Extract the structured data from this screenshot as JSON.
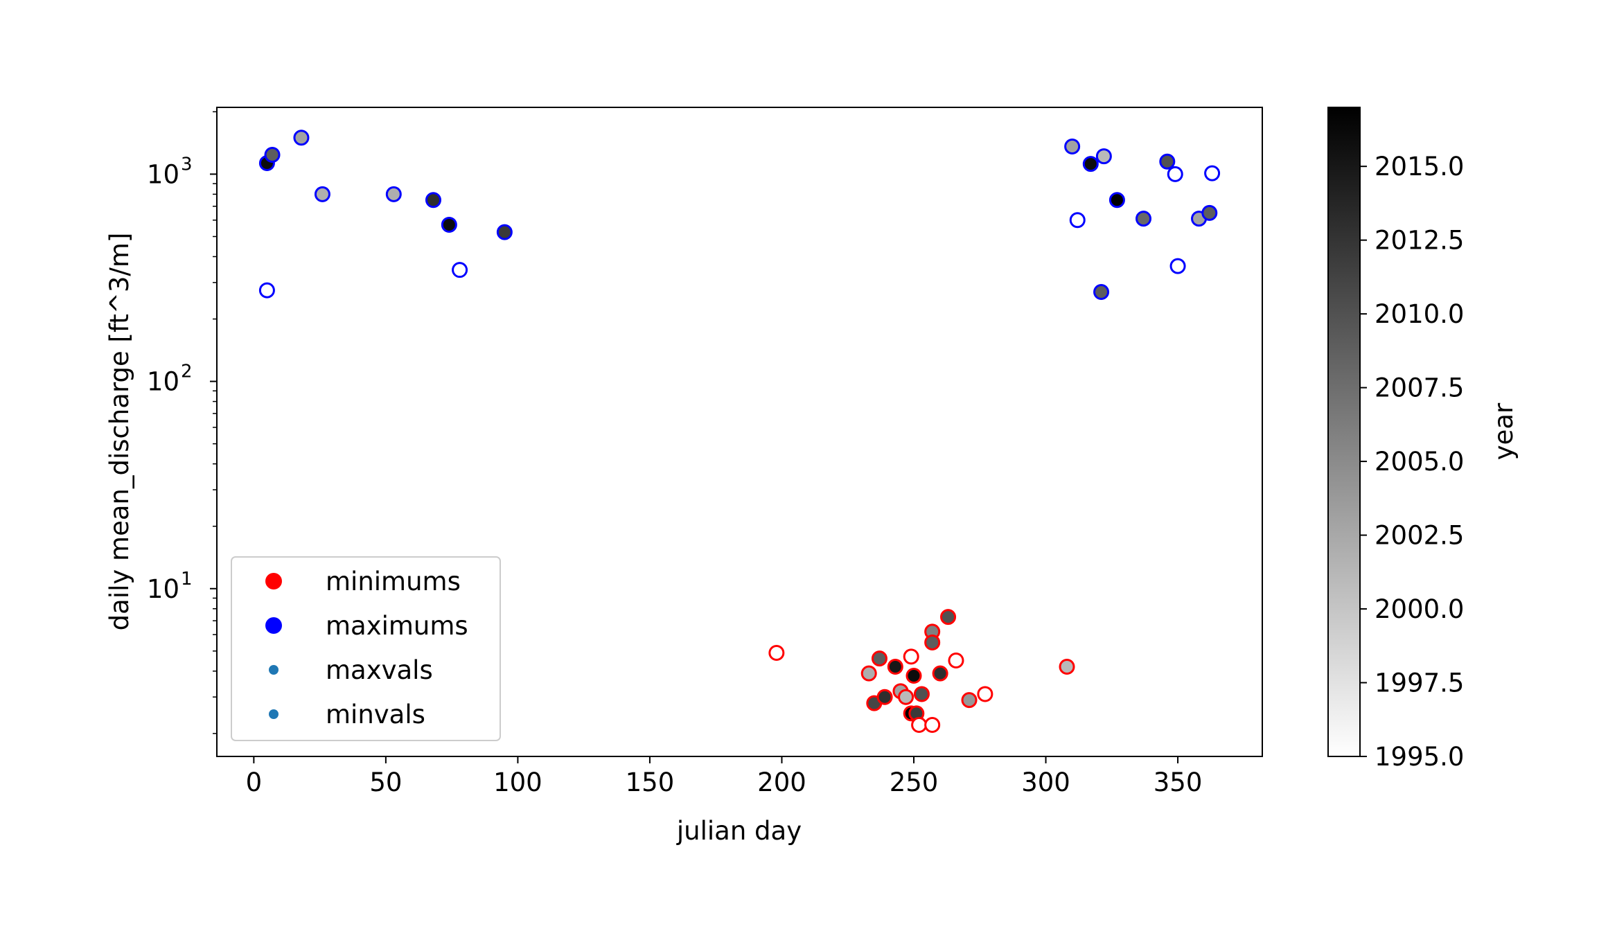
{
  "chart_data": {
    "type": "scatter",
    "title": "",
    "xlabel": "julian day",
    "ylabel": "daily mean_discharge [ft^3/m]",
    "xlim": [
      -14,
      382
    ],
    "ylim": [
      1.55,
      2100
    ],
    "yscale": "log",
    "xticks": [
      0,
      50,
      100,
      150,
      200,
      250,
      300,
      350
    ],
    "yticks": [
      {
        "value": 10,
        "base": "10",
        "exp": "1"
      },
      {
        "value": 100,
        "base": "10",
        "exp": "2"
      },
      {
        "value": 1000,
        "base": "10",
        "exp": "3"
      }
    ],
    "grid": false,
    "legend": {
      "placement": "lower-left",
      "entries": [
        {
          "label": "minimums",
          "color": "#ff0000",
          "marker": "large"
        },
        {
          "label": "maximums",
          "color": "#0000ff",
          "marker": "large"
        },
        {
          "label": "maxvals",
          "color": "#1f77b4",
          "marker": "small"
        },
        {
          "label": "minvals",
          "color": "#1f77b4",
          "marker": "small"
        }
      ]
    },
    "colorbar": {
      "label": "year",
      "range": [
        1995.0,
        2017.0
      ],
      "colormap": "gray_r",
      "ticks": [
        "1995.0",
        "1997.5",
        "2000.0",
        "2002.5",
        "2005.0",
        "2007.5",
        "2010.0",
        "2012.5",
        "2015.0"
      ]
    },
    "series": [
      {
        "name": "maximums",
        "edgecolor": "#0000ff",
        "points": [
          {
            "x": 5,
            "y": 1130,
            "year": 2016
          },
          {
            "x": 7,
            "y": 1240,
            "year": 2009
          },
          {
            "x": 18,
            "y": 1500,
            "year": 2003
          },
          {
            "x": 5,
            "y": 275,
            "year": 1995
          },
          {
            "x": 26,
            "y": 800,
            "year": 2002
          },
          {
            "x": 53,
            "y": 800,
            "year": 2002
          },
          {
            "x": 68,
            "y": 750,
            "year": 2013
          },
          {
            "x": 74,
            "y": 570,
            "year": 2016
          },
          {
            "x": 78,
            "y": 345,
            "year": 1995
          },
          {
            "x": 95,
            "y": 525,
            "year": 2012
          },
          {
            "x": 310,
            "y": 1360,
            "year": 2003
          },
          {
            "x": 312,
            "y": 600,
            "year": 1995
          },
          {
            "x": 317,
            "y": 1120,
            "year": 2016
          },
          {
            "x": 322,
            "y": 1220,
            "year": 2001
          },
          {
            "x": 321,
            "y": 270,
            "year": 2009
          },
          {
            "x": 327,
            "y": 750,
            "year": 2017
          },
          {
            "x": 337,
            "y": 610,
            "year": 2008
          },
          {
            "x": 346,
            "y": 1150,
            "year": 2010
          },
          {
            "x": 349,
            "y": 1000,
            "year": 1995
          },
          {
            "x": 350,
            "y": 360,
            "year": 1995
          },
          {
            "x": 358,
            "y": 610,
            "year": 2003
          },
          {
            "x": 362,
            "y": 650,
            "year": 2009
          },
          {
            "x": 363,
            "y": 1010,
            "year": 1995
          }
        ]
      },
      {
        "name": "minimums",
        "edgecolor": "#ff0000",
        "points": [
          {
            "x": 198,
            "y": 4.9,
            "year": 1995
          },
          {
            "x": 233,
            "y": 3.9,
            "year": 2002
          },
          {
            "x": 235,
            "y": 2.8,
            "year": 2011
          },
          {
            "x": 237,
            "y": 4.6,
            "year": 2009
          },
          {
            "x": 239,
            "y": 3.0,
            "year": 2013
          },
          {
            "x": 243,
            "y": 4.2,
            "year": 2015
          },
          {
            "x": 245,
            "y": 3.2,
            "year": 2003
          },
          {
            "x": 247,
            "y": 3.0,
            "year": 2001
          },
          {
            "x": 249,
            "y": 4.7,
            "year": 1995
          },
          {
            "x": 249,
            "y": 2.5,
            "year": 2017
          },
          {
            "x": 250,
            "y": 3.8,
            "year": 2016
          },
          {
            "x": 251,
            "y": 2.5,
            "year": 2012
          },
          {
            "x": 252,
            "y": 2.2,
            "year": 1995
          },
          {
            "x": 253,
            "y": 3.1,
            "year": 2010
          },
          {
            "x": 257,
            "y": 6.2,
            "year": 2006
          },
          {
            "x": 257,
            "y": 5.5,
            "year": 2009
          },
          {
            "x": 257,
            "y": 2.2,
            "year": 1995
          },
          {
            "x": 260,
            "y": 3.9,
            "year": 2013
          },
          {
            "x": 263,
            "y": 7.3,
            "year": 2010
          },
          {
            "x": 266,
            "y": 4.5,
            "year": 1995
          },
          {
            "x": 271,
            "y": 2.9,
            "year": 2004
          },
          {
            "x": 277,
            "y": 3.1,
            "year": 1995
          },
          {
            "x": 308,
            "y": 4.2,
            "year": 2001
          }
        ]
      }
    ]
  }
}
